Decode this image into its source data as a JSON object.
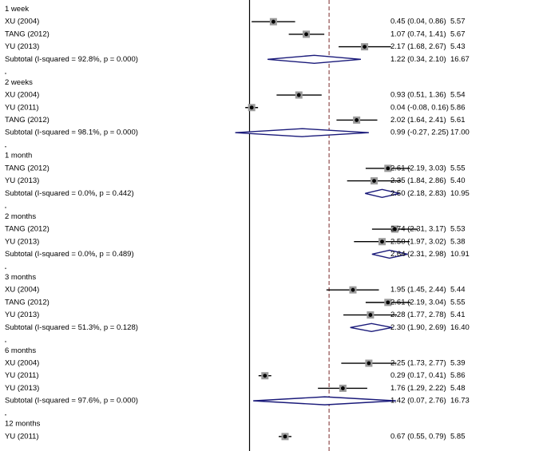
{
  "chart_data": {
    "type": "forest",
    "colors": {
      "ci_line": "#000000",
      "point": "#000000",
      "diamond": "#1a1a7a",
      "ref_line": "#7a2a2a"
    },
    "reference_line": 0,
    "overall_line": 1.5,
    "xlim": [
      -0.3,
      3.5
    ],
    "groups": [
      {
        "label": "1 week",
        "studies": [
          {
            "name": "XU (2004)",
            "effect": 0.45,
            "lower": 0.04,
            "upper": 0.86,
            "ci_text": "0.45 (0.04, 0.86)",
            "weight": "5.57"
          },
          {
            "name": "TANG (2012)",
            "effect": 1.07,
            "lower": 0.74,
            "upper": 1.41,
            "ci_text": "1.07 (0.74, 1.41)",
            "weight": "5.67"
          },
          {
            "name": "YU (2013)",
            "effect": 2.17,
            "lower": 1.68,
            "upper": 2.67,
            "ci_text": "2.17 (1.68, 2.67)",
            "weight": "5.43"
          }
        ],
        "subtotal": {
          "label": "Subtotal  (I-squared = 92.8%, p = 0.000)",
          "effect": 1.22,
          "lower": 0.34,
          "upper": 2.1,
          "ci_text": "1.22 (0.34, 2.10)",
          "weight": "16.67"
        }
      },
      {
        "label": "2 weeks",
        "studies": [
          {
            "name": "XU (2004)",
            "effect": 0.93,
            "lower": 0.51,
            "upper": 1.36,
            "ci_text": "0.93 (0.51, 1.36)",
            "weight": "5.54"
          },
          {
            "name": "YU (2011)",
            "effect": 0.04,
            "lower": -0.08,
            "upper": 0.16,
            "ci_text": "0.04 (-0.08, 0.16)",
            "weight": "5.86"
          },
          {
            "name": "TANG (2012)",
            "effect": 2.02,
            "lower": 1.64,
            "upper": 2.41,
            "ci_text": "2.02 (1.64, 2.41)",
            "weight": "5.61"
          }
        ],
        "subtotal": {
          "label": "Subtotal  (I-squared = 98.1%, p = 0.000)",
          "effect": 0.99,
          "lower": -0.27,
          "upper": 2.25,
          "ci_text": "0.99 (-0.27, 2.25)",
          "weight": "17.00"
        }
      },
      {
        "label": "1 month",
        "studies": [
          {
            "name": "TANG (2012)",
            "effect": 2.61,
            "lower": 2.19,
            "upper": 3.03,
            "ci_text": "2.61 (2.19, 3.03)",
            "weight": "5.55"
          },
          {
            "name": "YU (2013)",
            "effect": 2.35,
            "lower": 1.84,
            "upper": 2.86,
            "ci_text": "2.35 (1.84, 2.86)",
            "weight": "5.40"
          }
        ],
        "subtotal": {
          "label": "Subtotal  (I-squared = 0.0%, p = 0.442)",
          "effect": 2.5,
          "lower": 2.18,
          "upper": 2.83,
          "ci_text": "2.50 (2.18, 2.83)",
          "weight": "10.95"
        }
      },
      {
        "label": "2 months",
        "studies": [
          {
            "name": "TANG (2012)",
            "effect": 2.74,
            "lower": 2.31,
            "upper": 3.17,
            "ci_text": "2.74 (2.31, 3.17)",
            "weight": "5.53"
          },
          {
            "name": "YU (2013)",
            "effect": 2.5,
            "lower": 1.97,
            "upper": 3.02,
            "ci_text": "2.50 (1.97, 3.02)",
            "weight": "5.38"
          }
        ],
        "subtotal": {
          "label": "Subtotal  (I-squared = 0.0%, p = 0.489)",
          "effect": 2.64,
          "lower": 2.31,
          "upper": 2.98,
          "ci_text": "2.64 (2.31, 2.98)",
          "weight": "10.91"
        }
      },
      {
        "label": "3 months",
        "studies": [
          {
            "name": "XU (2004)",
            "effect": 1.95,
            "lower": 1.45,
            "upper": 2.44,
            "ci_text": "1.95 (1.45, 2.44)",
            "weight": "5.44"
          },
          {
            "name": "TANG (2012)",
            "effect": 2.61,
            "lower": 2.19,
            "upper": 3.04,
            "ci_text": "2.61 (2.19, 3.04)",
            "weight": "5.55"
          },
          {
            "name": "YU (2013)",
            "effect": 2.28,
            "lower": 1.77,
            "upper": 2.78,
            "ci_text": "2.28 (1.77, 2.78)",
            "weight": "5.41"
          }
        ],
        "subtotal": {
          "label": "Subtotal  (I-squared = 51.3%, p = 0.128)",
          "effect": 2.3,
          "lower": 1.9,
          "upper": 2.69,
          "ci_text": "2.30 (1.90, 2.69)",
          "weight": "16.40"
        }
      },
      {
        "label": "6 months",
        "studies": [
          {
            "name": "XU (2004)",
            "effect": 2.25,
            "lower": 1.73,
            "upper": 2.77,
            "ci_text": "2.25 (1.73, 2.77)",
            "weight": "5.39"
          },
          {
            "name": "YU (2011)",
            "effect": 0.29,
            "lower": 0.17,
            "upper": 0.41,
            "ci_text": "0.29 (0.17, 0.41)",
            "weight": "5.86"
          },
          {
            "name": "YU (2013)",
            "effect": 1.76,
            "lower": 1.29,
            "upper": 2.22,
            "ci_text": "1.76 (1.29, 2.22)",
            "weight": "5.48"
          }
        ],
        "subtotal": {
          "label": "Subtotal  (I-squared = 97.6%, p = 0.000)",
          "effect": 1.42,
          "lower": 0.07,
          "upper": 2.76,
          "ci_text": "1.42 (0.07, 2.76)",
          "weight": "16.73"
        }
      },
      {
        "label": "12 months",
        "studies": [
          {
            "name": "YU (2011)",
            "effect": 0.67,
            "lower": 0.55,
            "upper": 0.79,
            "ci_text": "0.67 (0.55, 0.79)",
            "weight": "5.85"
          }
        ],
        "subtotal": null
      }
    ]
  }
}
